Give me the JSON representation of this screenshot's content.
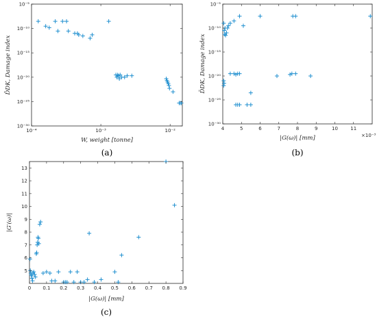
{
  "chart_data": [
    {
      "type": "scatter",
      "panel": "a",
      "caption": "(a)",
      "xlabel": "W, weight  [tonne]",
      "ylabel": "D̄DK, Damage index",
      "xscale": "log",
      "yscale": "log",
      "xlim": [
        0.0001,
        0.015
      ],
      "ylim": [
        1e-30,
        1e-05
      ],
      "xticks": [
        "10⁻⁴",
        "10⁻³",
        "10⁻²"
      ],
      "xtick_values": [
        0.0001,
        0.001,
        0.01
      ],
      "yticks": [
        "10⁻⁵",
        "10⁻¹⁰",
        "10⁻¹⁵",
        "10⁻²⁰",
        "10⁻²⁵",
        "10⁻³⁰"
      ],
      "ytick_values": [
        1e-05,
        1e-10,
        1e-15,
        1e-20,
        1e-25,
        1e-30
      ],
      "marker": "+",
      "color": "#1f8fcf",
      "points": [
        [
          0.000125,
          3e-09
        ],
        [
          0.00016,
          3e-10
        ],
        [
          0.00018,
          1.5e-10
        ],
        [
          0.00022,
          3e-09
        ],
        [
          0.00024,
          3e-11
        ],
        [
          0.00028,
          3e-09
        ],
        [
          0.00032,
          3e-09
        ],
        [
          0.00034,
          3e-11
        ],
        [
          0.00042,
          1e-11
        ],
        [
          0.00046,
          1e-11
        ],
        [
          0.00048,
          5e-12
        ],
        [
          0.00055,
          3e-12
        ],
        [
          0.0007,
          1e-12
        ],
        [
          0.00075,
          5e-12
        ],
        [
          0.0013,
          3e-09
        ],
        [
          0.00165,
          3e-20
        ],
        [
          0.0017,
          1e-20
        ],
        [
          0.00175,
          3e-20
        ],
        [
          0.0018,
          2e-20
        ],
        [
          0.00185,
          5e-21
        ],
        [
          0.0019,
          3e-20
        ],
        [
          0.002,
          1e-20
        ],
        [
          0.0022,
          1e-20
        ],
        [
          0.0024,
          2e-20
        ],
        [
          0.0028,
          2e-20
        ],
        [
          0.0088,
          5e-21
        ],
        [
          0.009,
          2e-21
        ],
        [
          0.0092,
          1e-21
        ],
        [
          0.0094,
          5e-22
        ],
        [
          0.0096,
          2e-22
        ],
        [
          0.0098,
          5e-23
        ],
        [
          0.011,
          1e-23
        ],
        [
          0.0135,
          5e-26
        ],
        [
          0.014,
          5e-26
        ],
        [
          0.0145,
          5e-26
        ]
      ]
    },
    {
      "type": "scatter",
      "panel": "b",
      "caption": "(b)",
      "xlabel": "|G(ω)|  [mm]",
      "ylabel": "D̄DK, Damage index",
      "xscale": "linear",
      "yscale": "log",
      "xlim": [
        4.0,
        12.0
      ],
      "ylim": [
        1e-30,
        1e-05
      ],
      "xticks": [
        "4",
        "5",
        "6",
        "7",
        "8",
        "9",
        "10",
        "11"
      ],
      "xtick_values": [
        4,
        5,
        6,
        7,
        8,
        9,
        10,
        11
      ],
      "x_multiplier": "×10⁻³",
      "yticks": [
        "10⁻⁵",
        "10⁻¹⁰",
        "10⁻¹⁵",
        "10⁻²⁰",
        "10⁻²⁵",
        "10⁻³⁰"
      ],
      "ytick_values": [
        1e-05,
        1e-10,
        1e-15,
        1e-20,
        1e-25,
        1e-30
      ],
      "marker": "+",
      "color": "#1f8fcf",
      "points": [
        [
          4.05,
          1e-09
        ],
        [
          4.08,
          3e-11
        ],
        [
          4.1,
          5e-12
        ],
        [
          4.12,
          1e-10
        ],
        [
          4.15,
          3e-12
        ],
        [
          4.2,
          1e-11
        ],
        [
          4.25,
          1e-10
        ],
        [
          4.3,
          3e-10
        ],
        [
          4.4,
          1e-09
        ],
        [
          4.6,
          3e-09
        ],
        [
          4.9,
          3e-08
        ],
        [
          5.1,
          3e-10
        ],
        [
          6.0,
          3e-08
        ],
        [
          7.75,
          3e-08
        ],
        [
          7.9,
          3e-08
        ],
        [
          11.9,
          3e-08
        ],
        [
          4.05,
          1e-21
        ],
        [
          4.05,
          1e-22
        ],
        [
          4.07,
          3e-22
        ],
        [
          4.4,
          3e-20
        ],
        [
          4.6,
          3e-20
        ],
        [
          4.7,
          2e-20
        ],
        [
          4.8,
          3e-20
        ],
        [
          4.9,
          3e-20
        ],
        [
          5.5,
          3e-24
        ],
        [
          6.9,
          1e-20
        ],
        [
          7.6,
          2e-20
        ],
        [
          7.7,
          3e-20
        ],
        [
          7.9,
          3e-20
        ],
        [
          8.7,
          1e-20
        ],
        [
          4.7,
          1e-26
        ],
        [
          4.8,
          1e-26
        ],
        [
          4.9,
          1e-26
        ],
        [
          5.3,
          1e-26
        ],
        [
          5.5,
          1e-26
        ]
      ]
    },
    {
      "type": "scatter",
      "panel": "c",
      "caption": "(c)",
      "xlabel": "|G(ω)|  [mm]",
      "ylabel": "|G′(ω)|",
      "xscale": "linear",
      "yscale": "linear",
      "xlim": [
        0,
        0.9
      ],
      "ylim": [
        4.0,
        13.5
      ],
      "xticks": [
        "0",
        "0.1",
        "0.2",
        "0.3",
        "0.4",
        "0.5",
        "0.6",
        "0.7",
        "0.8",
        "0.9"
      ],
      "xtick_values": [
        0,
        0.1,
        0.2,
        0.3,
        0.4,
        0.5,
        0.6,
        0.7,
        0.8,
        0.9
      ],
      "yticks": [
        "5",
        "6",
        "7",
        "8",
        "9",
        "10",
        "11",
        "12",
        "13"
      ],
      "ytick_values": [
        5,
        6,
        7,
        8,
        9,
        10,
        11,
        12,
        13
      ],
      "marker": "+",
      "color": "#1f8fcf",
      "points": [
        [
          0.003,
          5.9
        ],
        [
          0.005,
          5.0
        ],
        [
          0.008,
          4.8
        ],
        [
          0.01,
          4.7
        ],
        [
          0.012,
          4.6
        ],
        [
          0.015,
          4.4
        ],
        [
          0.018,
          4.2
        ],
        [
          0.02,
          4.8
        ],
        [
          0.025,
          4.9
        ],
        [
          0.03,
          4.7
        ],
        [
          0.035,
          4.5
        ],
        [
          0.04,
          6.3
        ],
        [
          0.042,
          6.4
        ],
        [
          0.045,
          7.0
        ],
        [
          0.048,
          7.2
        ],
        [
          0.05,
          7.6
        ],
        [
          0.052,
          7.5
        ],
        [
          0.055,
          7.1
        ],
        [
          0.06,
          8.6
        ],
        [
          0.065,
          8.8
        ],
        [
          0.08,
          4.8
        ],
        [
          0.1,
          4.9
        ],
        [
          0.12,
          4.8
        ],
        [
          0.13,
          4.2
        ],
        [
          0.15,
          4.2
        ],
        [
          0.17,
          4.9
        ],
        [
          0.2,
          4.1
        ],
        [
          0.21,
          4.1
        ],
        [
          0.22,
          4.1
        ],
        [
          0.24,
          4.9
        ],
        [
          0.26,
          4.1
        ],
        [
          0.28,
          4.9
        ],
        [
          0.3,
          4.1
        ],
        [
          0.32,
          4.1
        ],
        [
          0.34,
          4.3
        ],
        [
          0.35,
          7.9
        ],
        [
          0.38,
          4.1
        ],
        [
          0.42,
          4.3
        ],
        [
          0.5,
          4.9
        ],
        [
          0.52,
          4.1
        ],
        [
          0.54,
          6.2
        ],
        [
          0.64,
          7.6
        ],
        [
          0.8,
          13.5
        ],
        [
          0.85,
          10.1
        ]
      ]
    }
  ]
}
